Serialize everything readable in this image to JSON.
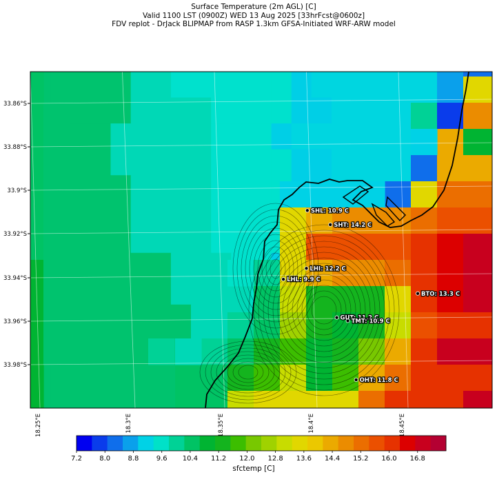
{
  "header": {
    "line1": "Surface Temperature (2m AGL) [C]",
    "line2": "Valid 1100 LST (0900Z) WED 13 Aug 2025 [33hrFcst@0600z]",
    "line3": "FDV replot - DrJack BLIPMAP from RASP 1.3km GFSA-Initiated WRF-ARW model"
  },
  "map": {
    "lat_ticks": [
      "33.86°S",
      "33.88°S",
      "33.9°S",
      "33.92°S",
      "33.94°S",
      "33.96°S",
      "33.98°S"
    ],
    "lon_ticks": [
      "18.25°E",
      "18.3°E",
      "18.35°E",
      "18.4°E",
      "18.45°E"
    ],
    "stations": [
      {
        "label": "SHL: 10.9 C",
        "lon": 18.4005,
        "lat": -33.909
      },
      {
        "label": "SHT: 14.2 C",
        "lon": 18.413,
        "lat": -33.9155
      },
      {
        "label": "LHI: 12.2 C",
        "lon": 18.4,
        "lat": -33.9355
      },
      {
        "label": "LHL: 9.9 C",
        "lon": 18.3875,
        "lat": -33.9405
      },
      {
        "label": "GUT: 11.2 C",
        "lon": 18.4165,
        "lat": -33.958
      },
      {
        "label": "TMT: 10.9 C",
        "lon": 18.4225,
        "lat": -33.9595
      },
      {
        "label": "BTO: 13.3 C",
        "lon": 18.4605,
        "lat": -33.947
      },
      {
        "label": "OHT: 11.8 C",
        "lon": 18.427,
        "lat": -33.9865
      }
    ]
  },
  "colorbar": {
    "label": "sfctemp [C]",
    "min": 7.2,
    "max": 17.6,
    "tick_values": [
      "7.2",
      "8.0",
      "8.8",
      "9.6",
      "10.4",
      "11.2",
      "12.0",
      "12.8",
      "13.6",
      "14.4",
      "15.2",
      "16.0",
      "16.8"
    ],
    "colors": [
      "#0000f0",
      "#0a3ceb",
      "#0f6eeb",
      "#0aa0eb",
      "#00d2e6",
      "#00e1c8",
      "#00d296",
      "#00c364",
      "#00b432",
      "#14b41e",
      "#3cbe00",
      "#78c800",
      "#a0d200",
      "#c8dc00",
      "#e1d700",
      "#ebc800",
      "#ebaa00",
      "#eb8c00",
      "#eb6e00",
      "#eb5000",
      "#e63200",
      "#dc0000",
      "#c8001e",
      "#b40032"
    ]
  },
  "chart_data": {
    "type": "heatmap",
    "title": "Surface Temperature (2m AGL) [C]",
    "variable": "sfctemp [C]",
    "colorscale_range": [
      7.2,
      17.6
    ],
    "stations": [
      {
        "name": "SHL",
        "value": 10.9
      },
      {
        "name": "SHT",
        "value": 14.2
      },
      {
        "name": "LHI",
        "value": 12.2
      },
      {
        "name": "LHL",
        "value": 9.9
      },
      {
        "name": "GUT",
        "value": 11.2
      },
      {
        "name": "TMT",
        "value": 10.9
      },
      {
        "name": "BTO",
        "value": 13.3
      },
      {
        "name": "OHT",
        "value": 11.8
      }
    ],
    "grid_rows": [
      "11111223333334555555555",
      "11111222233334455555511",
      "11112222233345555555522",
      "11112222233334455555566",
      "11111222233334455556666",
      "11111222233334455566666",
      "11111222233334566666666",
      "11111112223346666666666",
      "11111112222346666666666",
      "11111111222346666666666",
      "11111111222346666666666",
      "11111111222345666666666",
      "11111111222346666666666"
    ],
    "legend_note": ""
  }
}
